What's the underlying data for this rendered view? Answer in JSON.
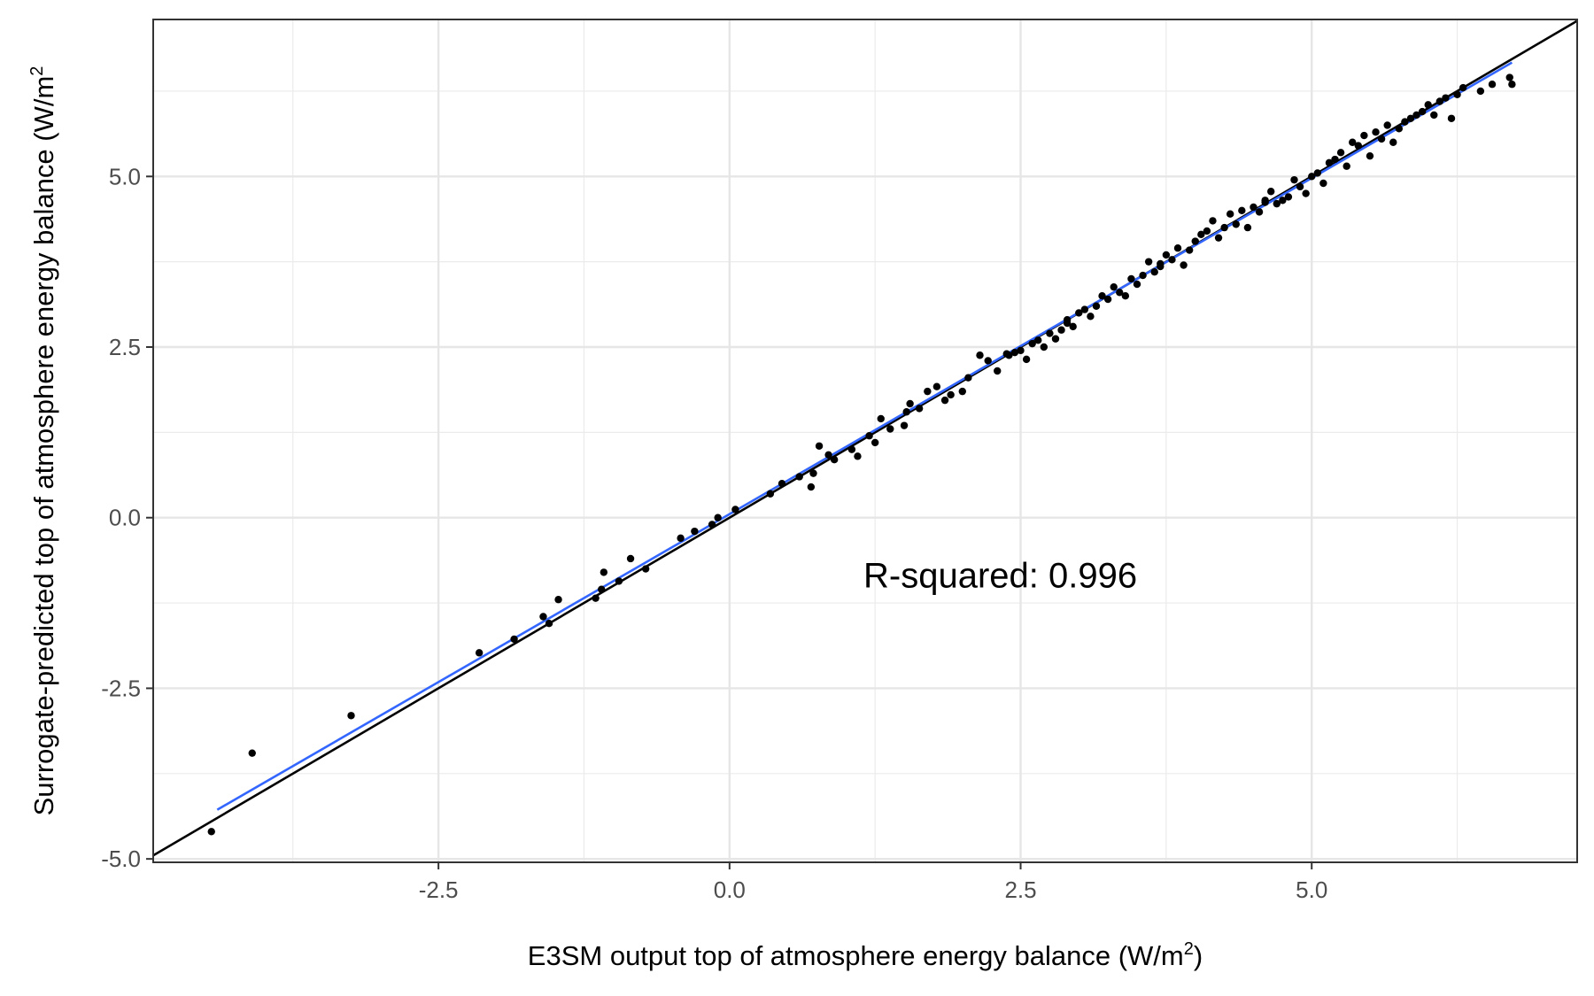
{
  "chart_data": {
    "type": "scatter",
    "xlabel": "E3SM output top of atmosphere energy balance (W/m²)",
    "xlabel_main": "E3SM output top of atmosphere energy balance (W/m",
    "xlabel_sup": "2",
    "xlabel_close": ")",
    "ylabel": "Surrogate-predicted top of atmosphere energy balance (W/m²)",
    "ylabel_main": "Surrogate-predicted top of atmosphere energy balance (W/m",
    "ylabel_sup": "2",
    "annotation": "R-squared: 0.996",
    "annotation_x": 1.15,
    "annotation_y": -1.02,
    "xlim": [
      -4.95,
      7.28
    ],
    "ylim": [
      -5.05,
      7.3
    ],
    "x_ticks": [
      {
        "value": -2.5,
        "label": "-2.5"
      },
      {
        "value": 0.0,
        "label": "0.0"
      },
      {
        "value": 2.5,
        "label": "2.5"
      },
      {
        "value": 5.0,
        "label": "5.0"
      }
    ],
    "y_ticks": [
      {
        "value": -5.0,
        "label": "-5.0"
      },
      {
        "value": -2.5,
        "label": "-2.5"
      },
      {
        "value": 0.0,
        "label": "0.0"
      },
      {
        "value": 2.5,
        "label": "2.5"
      },
      {
        "value": 5.0,
        "label": "5.0"
      }
    ],
    "grid": true,
    "reference_line": {
      "slope": 1,
      "intercept": 0,
      "color": "#000000"
    },
    "fit_line": {
      "x": [
        -4.4,
        6.72
      ],
      "y": [
        -4.28,
        6.67
      ],
      "color": "#3366ff"
    },
    "point_color": "#000000",
    "points": [
      [
        -4.45,
        -4.6
      ],
      [
        -4.1,
        -3.45
      ],
      [
        -3.25,
        -2.9
      ],
      [
        -2.15,
        -1.98
      ],
      [
        -1.85,
        -1.78
      ],
      [
        -1.6,
        -1.45
      ],
      [
        -1.55,
        -1.55
      ],
      [
        -1.47,
        -1.2
      ],
      [
        -1.15,
        -1.18
      ],
      [
        -1.1,
        -1.05
      ],
      [
        -1.08,
        -0.8
      ],
      [
        -0.95,
        -0.93
      ],
      [
        -0.85,
        -0.6
      ],
      [
        -0.72,
        -0.75
      ],
      [
        -0.42,
        -0.3
      ],
      [
        -0.3,
        -0.2
      ],
      [
        -0.15,
        -0.1
      ],
      [
        -0.1,
        0.0
      ],
      [
        0.05,
        0.12
      ],
      [
        0.35,
        0.35
      ],
      [
        0.45,
        0.5
      ],
      [
        0.6,
        0.6
      ],
      [
        0.7,
        0.45
      ],
      [
        0.72,
        0.65
      ],
      [
        0.77,
        1.05
      ],
      [
        0.85,
        0.92
      ],
      [
        0.9,
        0.85
      ],
      [
        1.05,
        1.0
      ],
      [
        1.1,
        0.9
      ],
      [
        1.2,
        1.2
      ],
      [
        1.25,
        1.1
      ],
      [
        1.3,
        1.45
      ],
      [
        1.38,
        1.3
      ],
      [
        1.5,
        1.35
      ],
      [
        1.52,
        1.55
      ],
      [
        1.55,
        1.67
      ],
      [
        1.63,
        1.6
      ],
      [
        1.7,
        1.85
      ],
      [
        1.78,
        1.92
      ],
      [
        1.85,
        1.72
      ],
      [
        1.9,
        1.8
      ],
      [
        2.0,
        1.85
      ],
      [
        2.05,
        2.05
      ],
      [
        2.15,
        2.38
      ],
      [
        2.22,
        2.3
      ],
      [
        2.3,
        2.15
      ],
      [
        2.38,
        2.4
      ],
      [
        2.45,
        2.42
      ],
      [
        2.55,
        2.32
      ],
      [
        2.6,
        2.55
      ],
      [
        2.65,
        2.6
      ],
      [
        2.7,
        2.5
      ],
      [
        2.75,
        2.7
      ],
      [
        2.8,
        2.62
      ],
      [
        2.85,
        2.75
      ],
      [
        2.9,
        2.85
      ],
      [
        2.95,
        2.8
      ],
      [
        3.0,
        3.0
      ],
      [
        3.05,
        3.05
      ],
      [
        3.1,
        2.95
      ],
      [
        3.15,
        3.1
      ],
      [
        3.2,
        3.25
      ],
      [
        3.25,
        3.2
      ],
      [
        3.3,
        3.38
      ],
      [
        3.35,
        3.3
      ],
      [
        3.4,
        3.25
      ],
      [
        3.45,
        3.5
      ],
      [
        3.5,
        3.42
      ],
      [
        3.55,
        3.55
      ],
      [
        3.6,
        3.75
      ],
      [
        3.65,
        3.6
      ],
      [
        3.7,
        3.72
      ],
      [
        3.75,
        3.85
      ],
      [
        3.8,
        3.78
      ],
      [
        3.85,
        3.95
      ],
      [
        3.9,
        3.7
      ],
      [
        3.95,
        3.92
      ],
      [
        4.0,
        4.05
      ],
      [
        4.05,
        4.15
      ],
      [
        4.1,
        4.2
      ],
      [
        4.15,
        4.35
      ],
      [
        4.2,
        4.1
      ],
      [
        4.25,
        4.25
      ],
      [
        4.3,
        4.45
      ],
      [
        4.35,
        4.3
      ],
      [
        4.4,
        4.5
      ],
      [
        4.45,
        4.25
      ],
      [
        4.5,
        4.55
      ],
      [
        4.55,
        4.48
      ],
      [
        4.6,
        4.62
      ],
      [
        4.65,
        4.78
      ],
      [
        4.7,
        4.6
      ],
      [
        4.75,
        4.65
      ],
      [
        4.8,
        4.7
      ],
      [
        4.85,
        4.95
      ],
      [
        4.9,
        4.85
      ],
      [
        4.95,
        4.75
      ],
      [
        5.0,
        5.0
      ],
      [
        5.05,
        5.05
      ],
      [
        5.1,
        4.9
      ],
      [
        5.15,
        5.2
      ],
      [
        5.2,
        5.25
      ],
      [
        5.25,
        5.35
      ],
      [
        5.3,
        5.15
      ],
      [
        5.35,
        5.5
      ],
      [
        5.4,
        5.45
      ],
      [
        5.45,
        5.6
      ],
      [
        5.5,
        5.3
      ],
      [
        5.55,
        5.65
      ],
      [
        5.6,
        5.55
      ],
      [
        5.65,
        5.75
      ],
      [
        5.7,
        5.5
      ],
      [
        5.75,
        5.7
      ],
      [
        5.8,
        5.8
      ],
      [
        5.85,
        5.85
      ],
      [
        5.9,
        5.9
      ],
      [
        5.95,
        5.95
      ],
      [
        6.0,
        6.05
      ],
      [
        6.05,
        5.9
      ],
      [
        6.1,
        6.1
      ],
      [
        6.15,
        6.15
      ],
      [
        6.2,
        5.85
      ],
      [
        6.25,
        6.2
      ],
      [
        6.3,
        6.3
      ],
      [
        6.45,
        6.25
      ],
      [
        6.55,
        6.35
      ],
      [
        6.7,
        6.45
      ],
      [
        6.72,
        6.35
      ],
      [
        2.5,
        2.45
      ],
      [
        2.4,
        2.38
      ],
      [
        2.9,
        2.9
      ],
      [
        3.7,
        3.68
      ],
      [
        4.6,
        4.65
      ]
    ]
  }
}
